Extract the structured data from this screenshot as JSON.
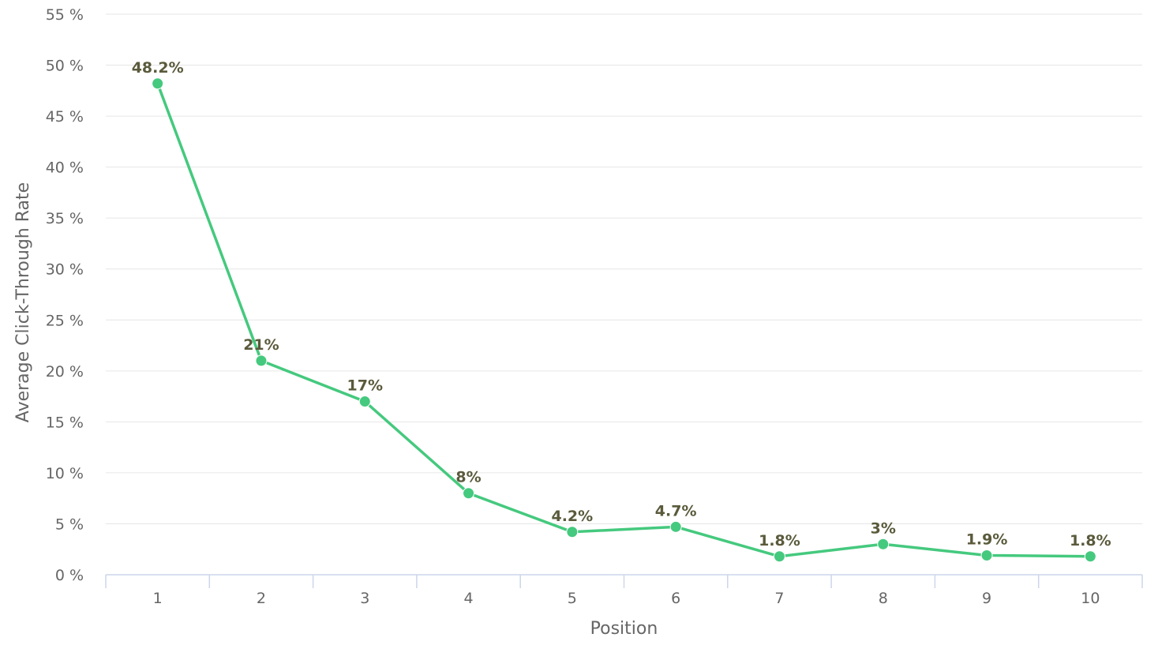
{
  "chart_data": {
    "type": "line",
    "title": "",
    "xlabel": "Position",
    "ylabel": "Average Click-Through Rate",
    "categories": [
      "1",
      "2",
      "3",
      "4",
      "5",
      "6",
      "7",
      "8",
      "9",
      "10"
    ],
    "series": [
      {
        "name": "Average Click-Through Rate",
        "values": [
          48.2,
          21,
          17,
          8,
          4.2,
          4.7,
          1.8,
          3,
          1.9,
          1.8
        ],
        "labels": [
          "48.2%",
          "21%",
          "17%",
          "8%",
          "4.2%",
          "4.7%",
          "1.8%",
          "3%",
          "1.9%",
          "1.8%"
        ]
      }
    ],
    "yticks": [
      0,
      5,
      10,
      15,
      20,
      25,
      30,
      35,
      40,
      45,
      50,
      55
    ],
    "ytick_labels": [
      "0 %",
      "5 %",
      "10 %",
      "15 %",
      "20 %",
      "25 %",
      "30 %",
      "35 %",
      "40 %",
      "45 %",
      "50 %",
      "55 %"
    ],
    "ylim": [
      0,
      55
    ],
    "grid": true,
    "legend": "none"
  },
  "colors": {
    "series": "#45c97e"
  }
}
